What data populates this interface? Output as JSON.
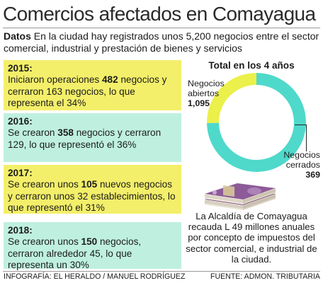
{
  "title": "Comercios afectados en Comayagua",
  "intro": {
    "lead": "Datos",
    "text": " En la ciudad hay registrados unos 5,200 negocios entre el sector comercial, industrial y prestación de bienes y servicios"
  },
  "years": [
    {
      "year": "2015:",
      "pre": "Iniciaron operaciones ",
      "bold": "482",
      "post": " negocios y cerraron 163 negocios, lo que representa el 34%"
    },
    {
      "year": "2016:",
      "pre": "Se crearon ",
      "bold": "358",
      "post": " negocios y cerraron 129, lo que representó el 36%"
    },
    {
      "year": "2017:",
      "pre": "Se crearon unos ",
      "bold": "105",
      "post": " nuevos negocios y cerraron unos 32 establecimientos, lo que representó el 31%"
    },
    {
      "year": "2018:",
      "pre": "Se crearon unos ",
      "bold": "150",
      "post": " negocios, cerraron alrededor 45, lo que representa un 30%"
    }
  ],
  "colors": {
    "open": "#4fd9cb",
    "closed": "#ebf04a",
    "box_yellow": "#f3ef6a",
    "box_teal": "#bff0df"
  },
  "chart_data": {
    "type": "pie",
    "variant": "donut",
    "title": "Total en los 4 años",
    "categories": [
      "Negocios abiertos",
      "Negocios cerrados"
    ],
    "values": [
      1095,
      369
    ],
    "value_labels": [
      "1,095",
      "369"
    ],
    "label_lines": [
      [
        "Negocios",
        "abiertos"
      ],
      [
        "Negocios",
        "cerrados"
      ]
    ]
  },
  "note": "La Alcaldía de Comayagua recauda L 49 millones anuales por concepto de impuestos del sector comercial, e industrial de la ciudad.",
  "footer": {
    "left": "INFOGRAFÍA: EL HERALDO / MANUEL RODRÍGUEZ",
    "right": "FUENTE: ADMON. TRIBUTARIA"
  }
}
